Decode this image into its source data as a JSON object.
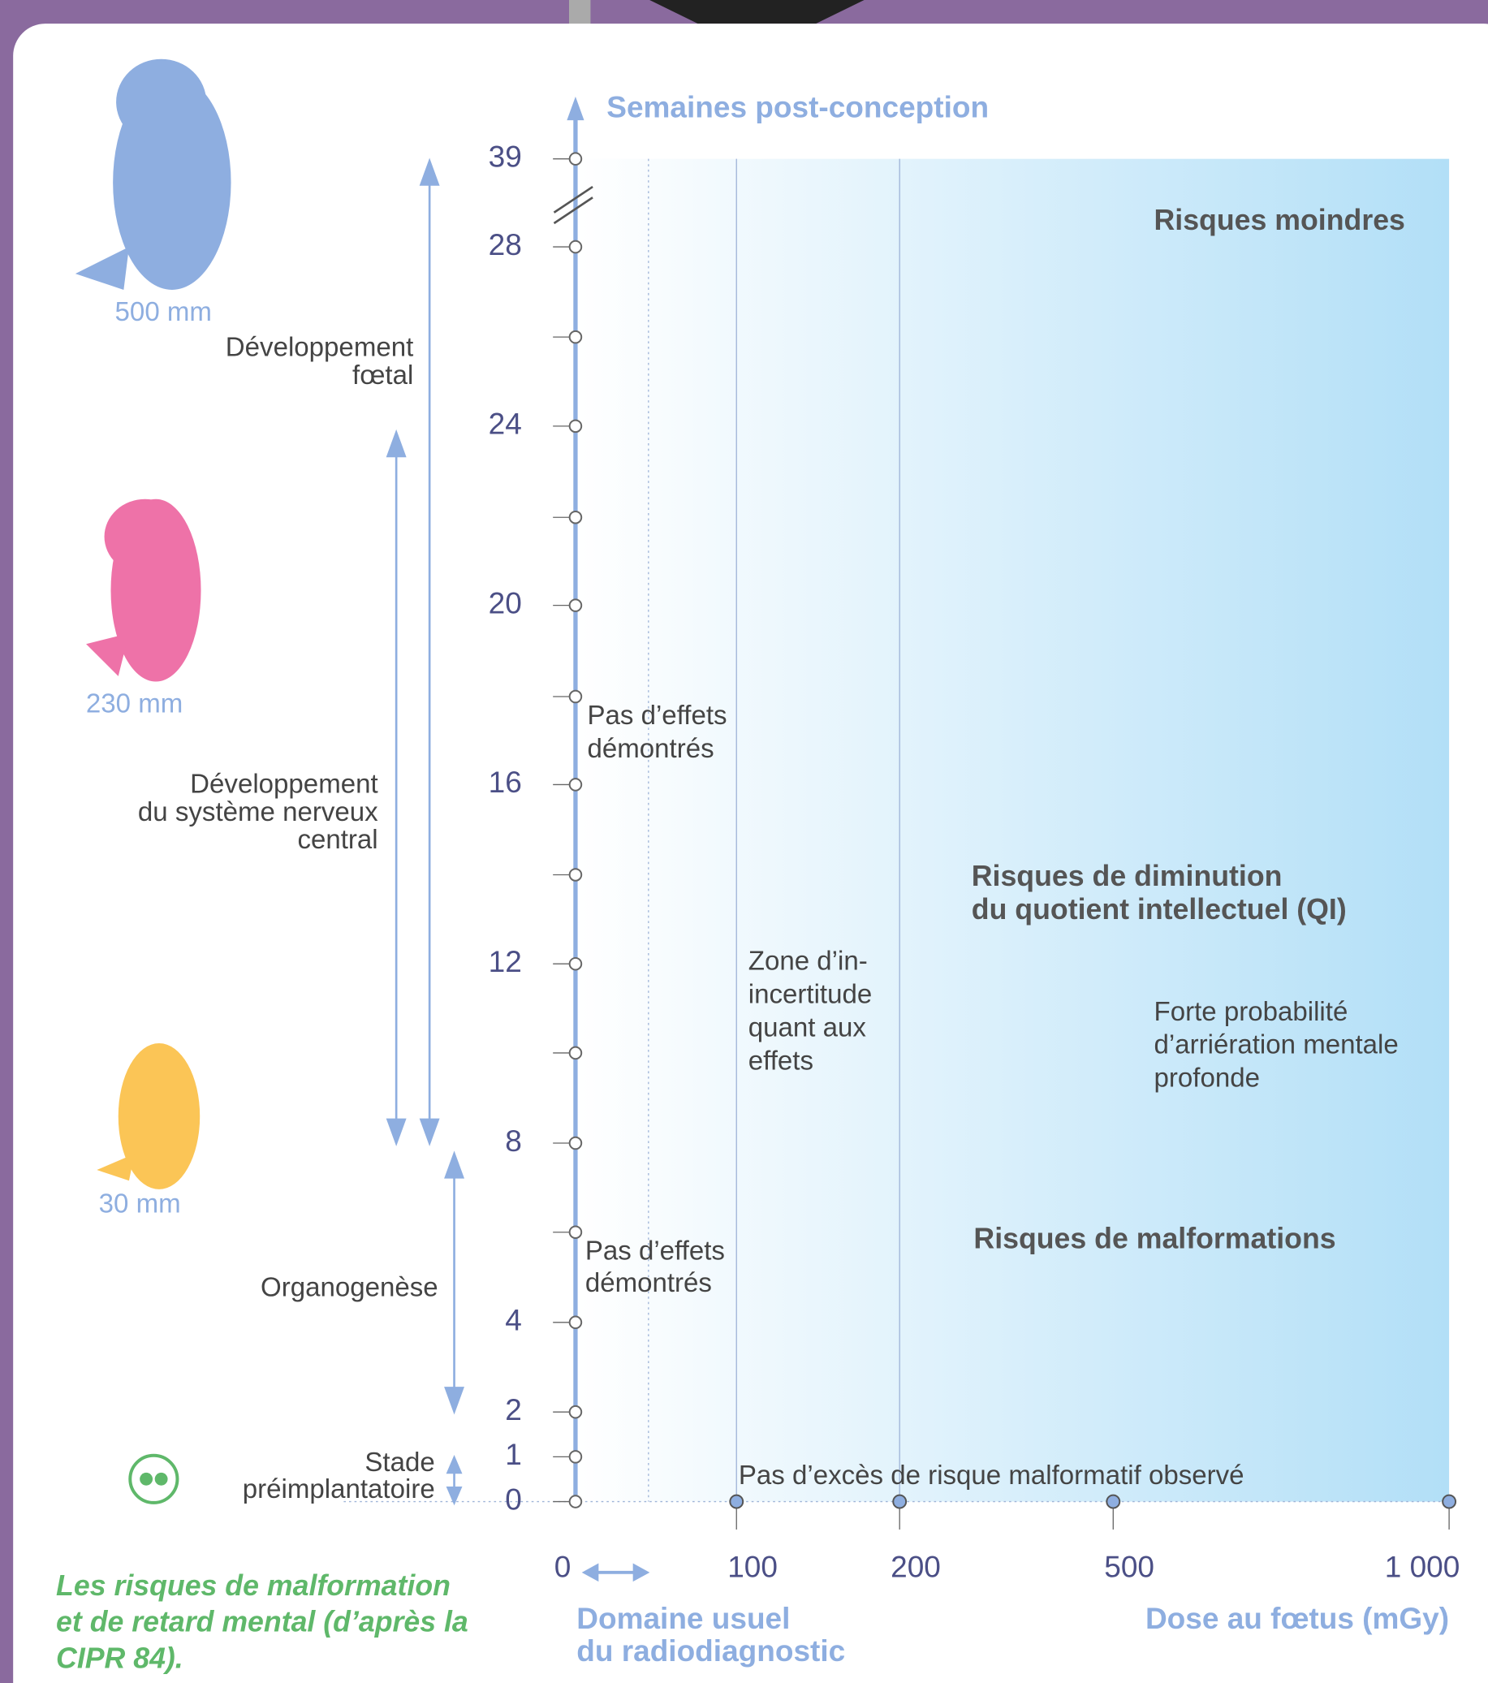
{
  "y_axis": {
    "title": "Semaines post-conception",
    "ticks": [
      0,
      1,
      2,
      4,
      8,
      12,
      16,
      20,
      24,
      28,
      39
    ]
  },
  "x_axis": {
    "title": "Dose au fœtus (mGy)",
    "ticks": [
      0,
      100,
      200,
      500,
      {
        "value": 1000,
        "label": "1 000"
      }
    ],
    "usual_range": [
      "Domaine usuel",
      "du radiodiagnostic"
    ]
  },
  "stages": [
    {
      "size": "500 mm",
      "period": [
        "Développement",
        "fœtal"
      ]
    },
    {
      "size": "230 mm",
      "period": [
        "Développement",
        "du système nerveux",
        "central"
      ]
    },
    {
      "size": "30 mm",
      "period": [
        "Organogenèse"
      ]
    },
    {
      "period": [
        "Stade",
        "préimplantatoire"
      ]
    }
  ],
  "zones": {
    "low_risk": "Risques moindres",
    "no_effect_upper": [
      "Pas d’effets",
      "démontrés"
    ],
    "no_effect_lower": [
      "Pas d’effets",
      "démontrés"
    ],
    "uncertainty": [
      "Zone d’in-",
      "incertitude",
      "quant aux",
      "effets"
    ],
    "iq_risk": [
      "Risques de diminution",
      "du quotient intellectuel (QI)"
    ],
    "retardation": [
      "Forte probabilité",
      "d’arriération mentale",
      "profonde"
    ],
    "malformation_risk": "Risques de malformations",
    "no_excess": "Pas d’excès de risque malformatif observé"
  },
  "caption": [
    "Les risques de malformation",
    "et de retard mental (d’après la",
    "CIPR 84)."
  ]
}
